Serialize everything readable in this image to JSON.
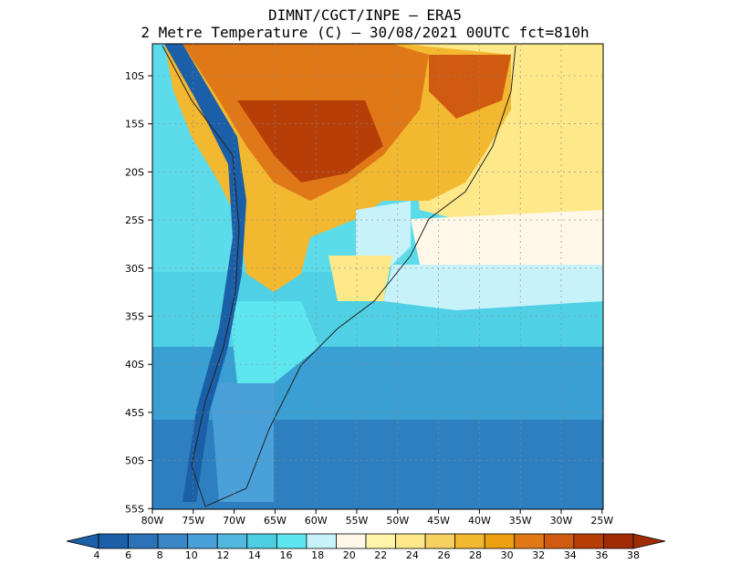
{
  "title": {
    "line1": "DIMNT/CGCT/INPE –  ERA5",
    "line2": "2 Metre Temperature (C) –  30/08/2021 00UTC fct=810h"
  },
  "axes": {
    "lat_labels": [
      "10S",
      "15S",
      "20S",
      "25S",
      "30S",
      "35S",
      "40S",
      "45S",
      "50S",
      "55S"
    ],
    "lon_labels": [
      "80W",
      "75W",
      "70W",
      "65W",
      "60W",
      "55W",
      "50W",
      "45W",
      "40W",
      "35W",
      "30W",
      "25W"
    ]
  },
  "colorbar": {
    "ticks": [
      "4",
      "6",
      "8",
      "10",
      "12",
      "14",
      "16",
      "18",
      "20",
      "22",
      "24",
      "26",
      "28",
      "30",
      "32",
      "34",
      "36",
      "38"
    ],
    "colors": [
      "#1b5fa8",
      "#2b72b8",
      "#3a87c8",
      "#4aa0d8",
      "#52b8e0",
      "#4ccfe0",
      "#5ee6f0",
      "#c8f2fa",
      "#fff8e8",
      "#fff4a8",
      "#fde88a",
      "#f8d060",
      "#f2b830",
      "#eca010",
      "#e07818",
      "#d05a10",
      "#b83e08",
      "#a02c06"
    ],
    "left_arrow_color": "#1b5fa8",
    "right_arrow_color": "#a02c06"
  }
}
